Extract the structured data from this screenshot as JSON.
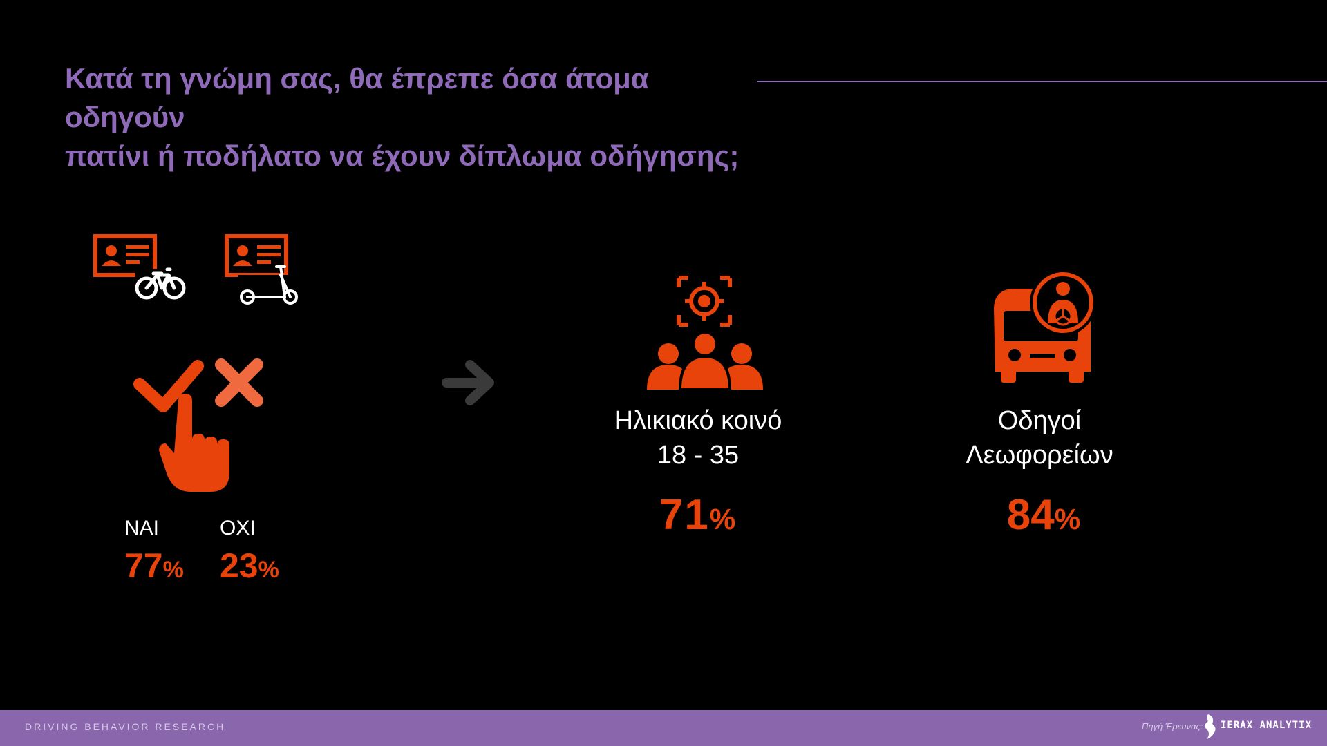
{
  "title": {
    "line1": "Κατά τη γνώμη σας, θα έπρεπε όσα άτομα οδηγούν",
    "line2": "πατίνι ή ποδήλατο να έχουν δίπλωμα οδήγησης;"
  },
  "icons": {
    "license_bike": "id-card-bicycle-icon",
    "license_scooter": "id-card-scooter-icon",
    "vote": "check-cross-hand-icon",
    "arrow": "arrow-right-icon",
    "age_group": "target-group-icon",
    "bus_driver": "bus-driver-icon"
  },
  "answers": {
    "yes": {
      "label": "ΝΑΙ",
      "value": "77",
      "unit": "%"
    },
    "no": {
      "label": "ΟΧΙ",
      "value": "23",
      "unit": "%"
    }
  },
  "segments": {
    "age": {
      "line1": "Ηλικιακό κοινό",
      "line2": "18 - 35",
      "value": "71",
      "unit": "%"
    },
    "bus": {
      "line1": "Οδηγοί",
      "line2": "Λεωφορείων",
      "value": "84",
      "unit": "%"
    }
  },
  "footer": {
    "left": "DRIVING BEHAVIOR RESEARCH",
    "source_label": "Πηγή Έρευνας:",
    "brand": "IERAX ANALYTIX"
  },
  "colors": {
    "accent": "#e8430b",
    "purple": "#8f6ab8",
    "footer": "#8a67ad",
    "background": "#000000"
  }
}
